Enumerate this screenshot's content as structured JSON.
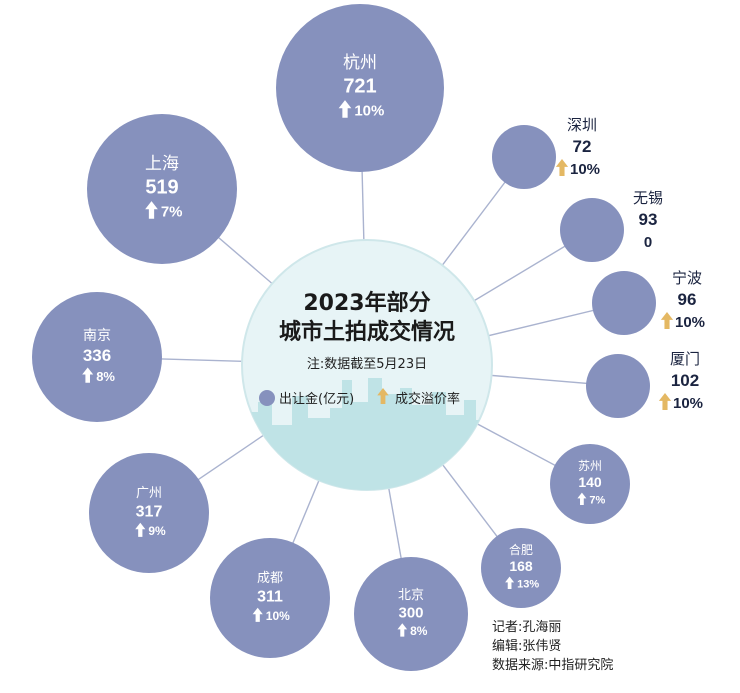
{
  "colors": {
    "bubble": "#8691bd",
    "bubble_text": "#ffffff",
    "outside_text": "#1b2440",
    "arrow_white": "#ffffff",
    "arrow_gold": "#e4b863",
    "line": "#aab3cf",
    "center_bg": "#e7f4f6",
    "skyline": "#bfe3e6",
    "title": "#1a1a1a"
  },
  "center": {
    "title_line1": "2023年部分",
    "title_line2": "城市土拍成交情况",
    "note": "注:数据截至5月23日",
    "legend_amount": "出让金(亿元)",
    "legend_premium": "成交溢价率"
  },
  "chart_data": {
    "type": "bubble",
    "series": [
      {
        "name": "出让金(亿元)",
        "unit": "亿元"
      },
      {
        "name": "成交溢价率",
        "unit": "%"
      }
    ],
    "points": [
      {
        "city": "杭州",
        "amount": 721,
        "amount_label": "721",
        "premium": 10,
        "premium_label": "10%"
      },
      {
        "city": "深圳",
        "amount": 72,
        "amount_label": "72",
        "premium": 10,
        "premium_label": "10%"
      },
      {
        "city": "无锡",
        "amount": 93,
        "amount_label": "93",
        "premium": 0,
        "premium_label": "0"
      },
      {
        "city": "宁波",
        "amount": 96,
        "amount_label": "96",
        "premium": 10,
        "premium_label": "10%"
      },
      {
        "city": "厦门",
        "amount": 102,
        "amount_label": "102",
        "premium": 10,
        "premium_label": "10%"
      },
      {
        "city": "苏州",
        "amount": 140,
        "amount_label": "140",
        "premium": 7,
        "premium_label": "7%"
      },
      {
        "city": "合肥",
        "amount": 168,
        "amount_label": "168",
        "premium": 13,
        "premium_label": "13%"
      },
      {
        "city": "北京",
        "amount": 300,
        "amount_label": "300",
        "premium": 8,
        "premium_label": "8%"
      },
      {
        "city": "成都",
        "amount": 311,
        "amount_label": "311",
        "premium": 10,
        "premium_label": "10%"
      },
      {
        "city": "广州",
        "amount": 317,
        "amount_label": "317",
        "premium": 9,
        "premium_label": "9%"
      },
      {
        "city": "南京",
        "amount": 336,
        "amount_label": "336",
        "premium": 8,
        "premium_label": "8%"
      },
      {
        "city": "上海",
        "amount": 519,
        "amount_label": "519",
        "premium": 7,
        "premium_label": "7%"
      }
    ]
  },
  "credits": {
    "reporter": "记者:孔海丽",
    "editor": "编辑:张伟贤",
    "source": "数据来源:中指研究院"
  }
}
